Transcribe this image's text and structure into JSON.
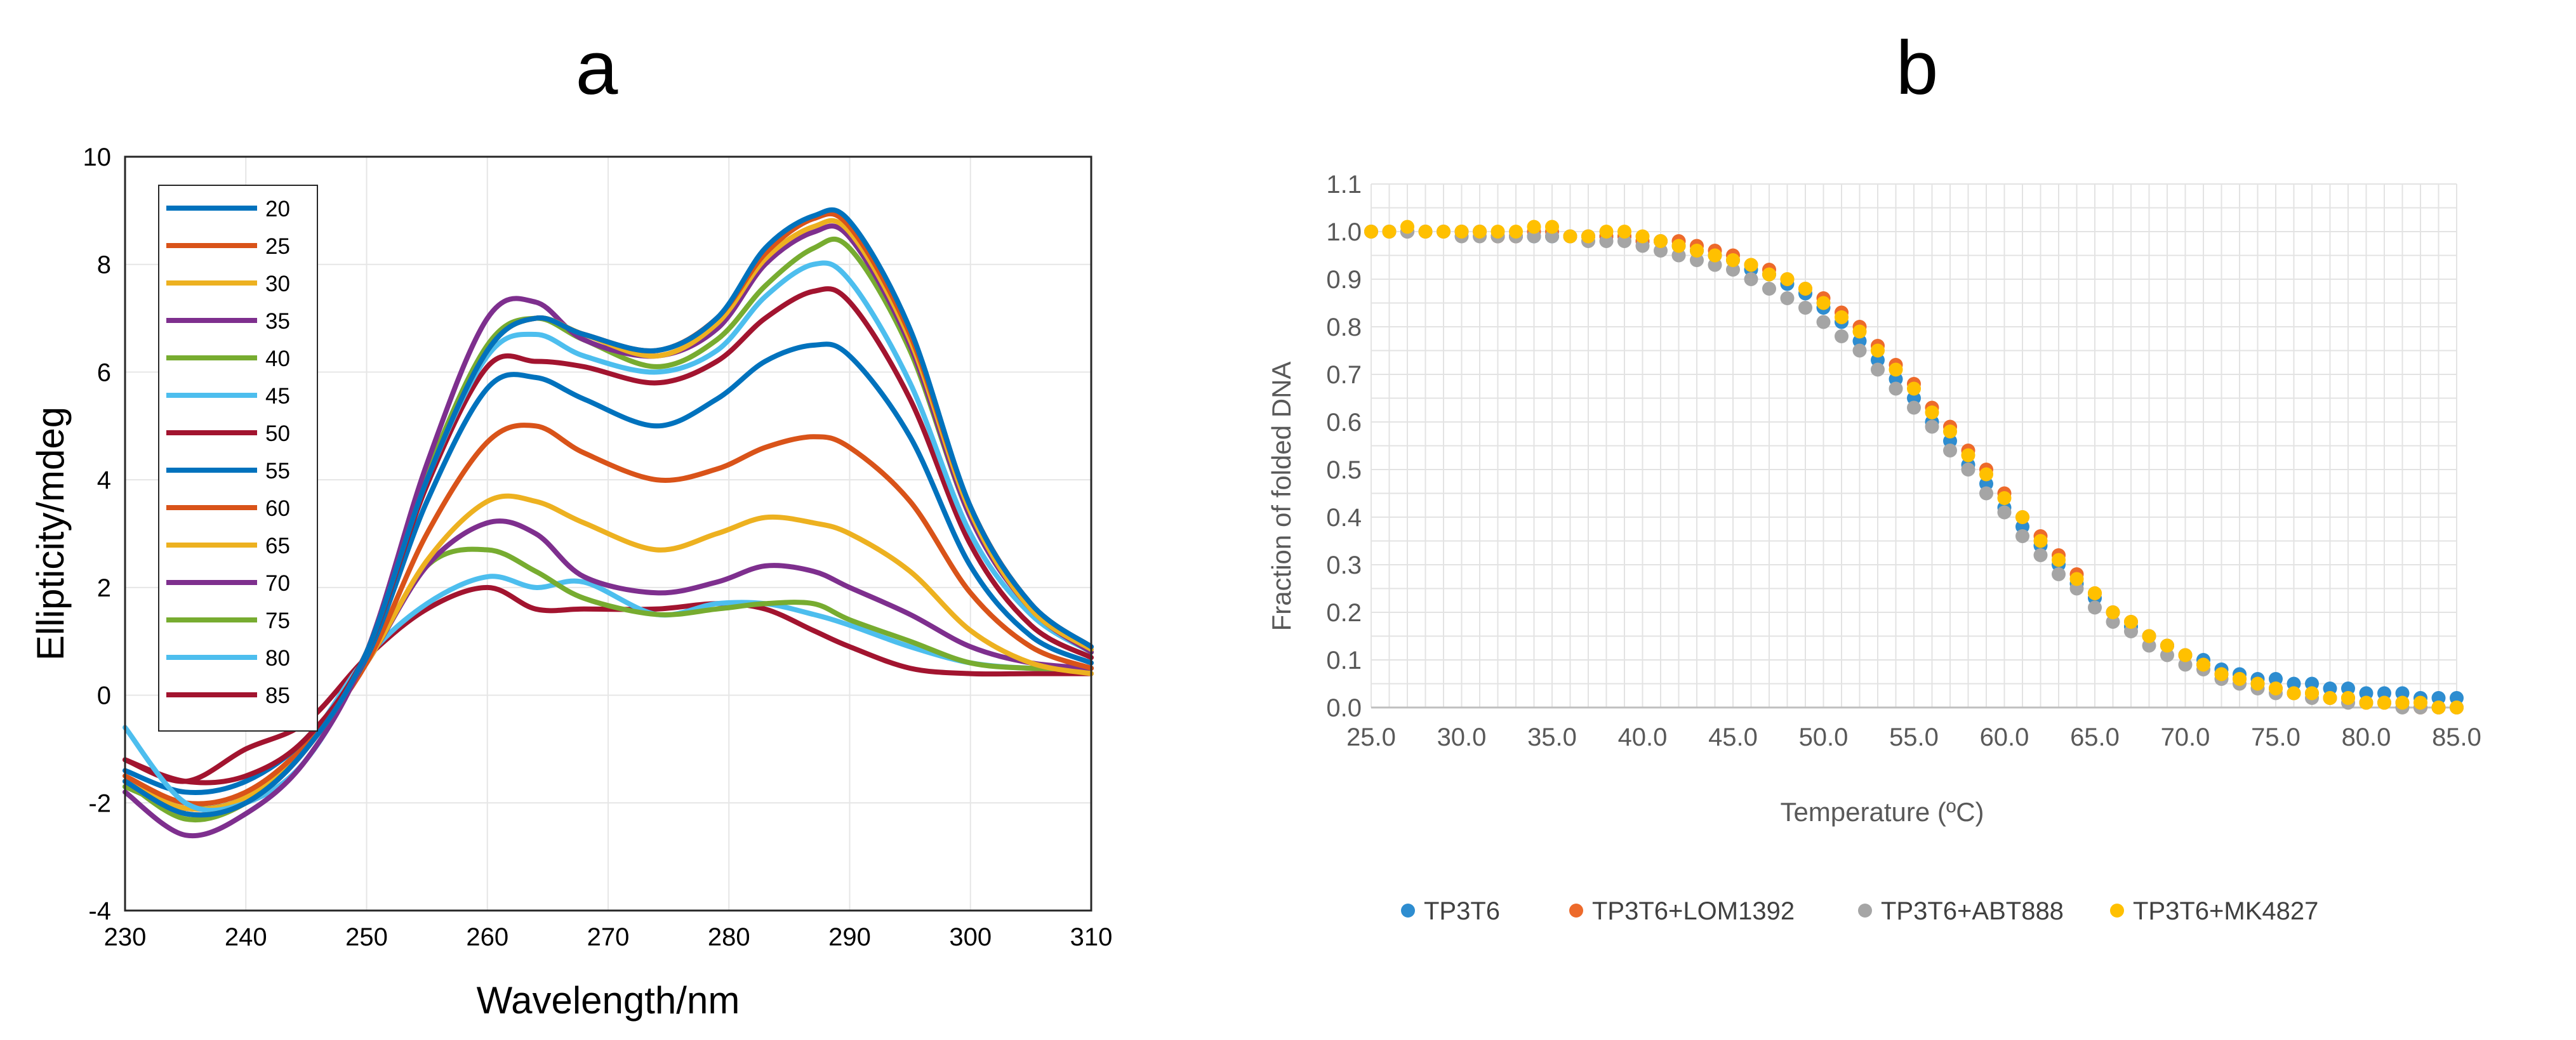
{
  "chart_data": [
    {
      "panel": "a",
      "type": "line",
      "title": "",
      "xlabel": "Wavelength/nm",
      "ylabel": "Ellipticity/mdeg",
      "xlim": [
        230,
        310
      ],
      "ylim": [
        -4,
        10
      ],
      "xticks": [
        "230",
        "240",
        "250",
        "260",
        "270",
        "280",
        "290",
        "300",
        "310"
      ],
      "yticks": [
        "-4",
        "-2",
        "0",
        "2",
        "4",
        "6",
        "8",
        "10"
      ],
      "grid": true,
      "legend_position": "top-left",
      "x": [
        230,
        235,
        240,
        245,
        250,
        255,
        260,
        264,
        268,
        274,
        279,
        283,
        287,
        290,
        295,
        300,
        305,
        310
      ],
      "series": [
        {
          "name": "20",
          "color": "#0072BD",
          "values": [
            -1.6,
            -2.2,
            -2.0,
            -1.0,
            0.8,
            4.0,
            6.4,
            7.0,
            6.7,
            6.4,
            7.0,
            8.3,
            8.9,
            8.8,
            6.8,
            3.5,
            1.7,
            0.9
          ]
        },
        {
          "name": "25",
          "color": "#D95319",
          "values": [
            -1.6,
            -2.2,
            -2.0,
            -1.0,
            0.8,
            4.0,
            6.4,
            7.0,
            6.7,
            6.4,
            7.0,
            8.2,
            8.85,
            8.7,
            6.7,
            3.5,
            1.7,
            0.9
          ]
        },
        {
          "name": "30",
          "color": "#EDB120",
          "values": [
            -1.6,
            -2.2,
            -2.0,
            -1.0,
            0.8,
            4.0,
            6.4,
            7.0,
            6.7,
            6.3,
            6.9,
            8.1,
            8.7,
            8.6,
            6.6,
            3.4,
            1.6,
            0.85
          ]
        },
        {
          "name": "35",
          "color": "#7E2F8E",
          "values": [
            -1.8,
            -2.6,
            -2.2,
            -1.2,
            0.8,
            4.3,
            7.0,
            7.3,
            6.6,
            6.3,
            6.8,
            8.0,
            8.6,
            8.5,
            6.5,
            3.3,
            1.6,
            0.8
          ]
        },
        {
          "name": "40",
          "color": "#77AC30",
          "values": [
            -1.6,
            -2.3,
            -2.0,
            -1.0,
            0.8,
            4.1,
            6.5,
            7.0,
            6.6,
            6.1,
            6.6,
            7.6,
            8.3,
            8.3,
            6.4,
            3.3,
            1.6,
            0.8
          ]
        },
        {
          "name": "45",
          "color": "#4DBEEE",
          "values": [
            -0.6,
            -2.0,
            -2.0,
            -1.2,
            0.8,
            4.0,
            6.3,
            6.7,
            6.3,
            6.0,
            6.4,
            7.4,
            8.0,
            7.7,
            5.8,
            3.0,
            1.5,
            0.8
          ]
        },
        {
          "name": "50",
          "color": "#A2142F",
          "values": [
            -1.2,
            -1.6,
            -1.5,
            -0.8,
            0.8,
            3.9,
            6.1,
            6.2,
            6.1,
            5.8,
            6.2,
            7.0,
            7.5,
            7.3,
            5.5,
            2.8,
            1.3,
            0.7
          ]
        },
        {
          "name": "55",
          "color": "#0072BD",
          "values": [
            -1.4,
            -1.8,
            -1.6,
            -0.8,
            0.7,
            3.6,
            5.7,
            5.9,
            5.5,
            5.0,
            5.5,
            6.2,
            6.5,
            6.3,
            4.8,
            2.4,
            1.1,
            0.6
          ]
        },
        {
          "name": "60",
          "color": "#D95319",
          "values": [
            -1.5,
            -2.0,
            -1.8,
            -0.9,
            0.6,
            3.0,
            4.7,
            5.0,
            4.5,
            4.0,
            4.2,
            4.6,
            4.8,
            4.6,
            3.6,
            1.9,
            0.9,
            0.5
          ]
        },
        {
          "name": "65",
          "color": "#EDB120",
          "values": [
            -1.6,
            -2.1,
            -1.9,
            -0.9,
            0.6,
            2.5,
            3.6,
            3.6,
            3.2,
            2.7,
            3.0,
            3.3,
            3.2,
            3.0,
            2.3,
            1.2,
            0.6,
            0.4
          ]
        },
        {
          "name": "70",
          "color": "#7E2F8E",
          "values": [
            -1.6,
            -2.1,
            -1.9,
            -0.9,
            0.6,
            2.4,
            3.2,
            3.0,
            2.2,
            1.9,
            2.1,
            2.4,
            2.3,
            2.0,
            1.5,
            0.9,
            0.6,
            0.5
          ]
        },
        {
          "name": "75",
          "color": "#77AC30",
          "values": [
            -1.7,
            -2.1,
            -1.9,
            -0.9,
            0.6,
            2.4,
            2.7,
            2.3,
            1.8,
            1.5,
            1.6,
            1.7,
            1.7,
            1.4,
            1.0,
            0.6,
            0.5,
            0.5
          ]
        },
        {
          "name": "80",
          "color": "#4DBEEE",
          "values": [
            -1.7,
            -2.1,
            -1.9,
            -0.9,
            0.7,
            1.7,
            2.2,
            2.0,
            2.1,
            1.5,
            1.7,
            1.7,
            1.5,
            1.3,
            0.9,
            0.6,
            0.5,
            0.5
          ]
        },
        {
          "name": "85",
          "color": "#A2142F",
          "values": [
            -1.2,
            -1.6,
            -1.0,
            -0.5,
            0.7,
            1.6,
            2.0,
            1.6,
            1.6,
            1.6,
            1.7,
            1.6,
            1.2,
            0.9,
            0.5,
            0.4,
            0.4,
            0.4
          ]
        }
      ]
    },
    {
      "panel": "b",
      "type": "scatter",
      "title": "",
      "xlabel": "Temperature (ºC)",
      "ylabel": "Fraction of folded DNA",
      "xlim": [
        25,
        85
      ],
      "ylim": [
        0,
        1.1
      ],
      "xticks": [
        "25.0",
        "30.0",
        "35.0",
        "40.0",
        "45.0",
        "50.0",
        "55.0",
        "60.0",
        "65.0",
        "70.0",
        "75.0",
        "80.0",
        "85.0"
      ],
      "yticks": [
        "0.0",
        "0.1",
        "0.2",
        "0.3",
        "0.4",
        "0.5",
        "0.6",
        "0.7",
        "0.8",
        "0.9",
        "1.0",
        "1.1"
      ],
      "grid": true,
      "legend_position": "bottom",
      "x_start": 25,
      "x_step": 1,
      "series": [
        {
          "name": "TP3T6",
          "color": "#2E8DD0",
          "values": [
            1.0,
            1.0,
            1.0,
            1.0,
            1.0,
            1.0,
            1.0,
            0.99,
            0.99,
            0.99,
            0.99,
            0.99,
            0.99,
            0.99,
            0.99,
            0.98,
            0.98,
            0.97,
            0.96,
            0.95,
            0.94,
            0.92,
            0.91,
            0.89,
            0.87,
            0.84,
            0.81,
            0.77,
            0.73,
            0.69,
            0.65,
            0.6,
            0.56,
            0.51,
            0.47,
            0.42,
            0.38,
            0.34,
            0.3,
            0.26,
            0.23,
            0.2,
            0.17,
            0.15,
            0.13,
            0.11,
            0.1,
            0.08,
            0.07,
            0.06,
            0.06,
            0.05,
            0.05,
            0.04,
            0.04,
            0.03,
            0.03,
            0.03,
            0.02,
            0.02,
            0.02
          ]
        },
        {
          "name": "TP3T6+LOM1392",
          "color": "#ED6A2B",
          "values": [
            1.0,
            1.0,
            1.0,
            1.0,
            1.0,
            1.0,
            1.0,
            0.99,
            0.99,
            1.0,
            1.0,
            0.99,
            0.99,
            0.99,
            0.99,
            0.98,
            0.98,
            0.98,
            0.97,
            0.96,
            0.95,
            0.93,
            0.92,
            0.9,
            0.88,
            0.86,
            0.83,
            0.8,
            0.76,
            0.72,
            0.68,
            0.63,
            0.59,
            0.54,
            0.5,
            0.45,
            0.4,
            0.36,
            0.32,
            0.28,
            0.24,
            0.2,
            0.18,
            0.15,
            0.13,
            0.11,
            0.09,
            0.07,
            0.06,
            0.05,
            0.04,
            0.03,
            0.03,
            0.02,
            0.02,
            0.01,
            0.01,
            0.01,
            0.0,
            0.0,
            0.0
          ]
        },
        {
          "name": "TP3T6+ABT888",
          "color": "#A5A5A5",
          "values": [
            1.0,
            1.0,
            1.0,
            1.0,
            1.0,
            0.99,
            0.99,
            0.99,
            0.99,
            0.99,
            0.99,
            0.99,
            0.98,
            0.98,
            0.98,
            0.97,
            0.96,
            0.95,
            0.94,
            0.93,
            0.92,
            0.9,
            0.88,
            0.86,
            0.84,
            0.81,
            0.78,
            0.75,
            0.71,
            0.67,
            0.63,
            0.59,
            0.54,
            0.5,
            0.45,
            0.41,
            0.36,
            0.32,
            0.28,
            0.25,
            0.21,
            0.18,
            0.16,
            0.13,
            0.11,
            0.09,
            0.08,
            0.06,
            0.05,
            0.04,
            0.03,
            0.03,
            0.02,
            0.02,
            0.01,
            0.01,
            0.01,
            0.0,
            0.0,
            0.0,
            0.0
          ]
        },
        {
          "name": "TP3T6+MK4827",
          "color": "#FFC000",
          "values": [
            1.0,
            1.0,
            1.01,
            1.0,
            1.0,
            1.0,
            1.0,
            1.0,
            1.0,
            1.01,
            1.01,
            0.99,
            0.99,
            1.0,
            1.0,
            0.99,
            0.98,
            0.97,
            0.96,
            0.95,
            0.94,
            0.93,
            0.91,
            0.9,
            0.88,
            0.85,
            0.82,
            0.79,
            0.75,
            0.71,
            0.67,
            0.62,
            0.58,
            0.53,
            0.49,
            0.44,
            0.4,
            0.35,
            0.31,
            0.27,
            0.24,
            0.2,
            0.18,
            0.15,
            0.13,
            0.11,
            0.09,
            0.07,
            0.06,
            0.05,
            0.04,
            0.03,
            0.03,
            0.02,
            0.02,
            0.01,
            0.01,
            0.01,
            0.01,
            0.0,
            0.0
          ]
        }
      ]
    }
  ],
  "panel_labels": {
    "a": "a",
    "b": "b"
  }
}
